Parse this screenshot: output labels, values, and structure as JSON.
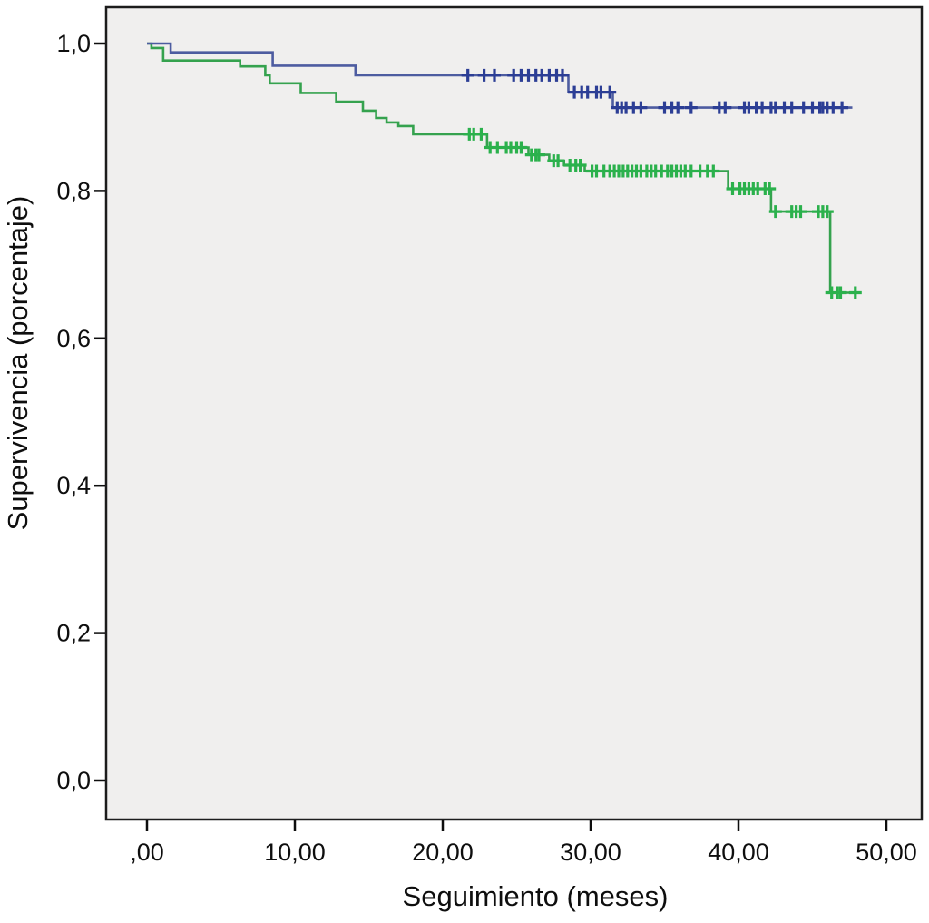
{
  "figure": {
    "background_color": "#ffffff",
    "panel_background": "#f0efee",
    "panel_border_color": "#1c1c1c",
    "tick_color": "#0e0e0e"
  },
  "chart_data": {
    "type": "line",
    "subtype": "kaplan-meier-survival-step",
    "title": "",
    "xlabel": "Seguimiento (meses)",
    "ylabel": "Supervivencia (porcentaje)",
    "xlim": [
      0,
      50
    ],
    "ylim": [
      0,
      1
    ],
    "grid": false,
    "legend": "none",
    "x_ticks": [
      {
        "value": 0,
        "label": ",00"
      },
      {
        "value": 10,
        "label": "10,00"
      },
      {
        "value": 20,
        "label": "20,00"
      },
      {
        "value": 30,
        "label": "30,00"
      },
      {
        "value": 40,
        "label": "40,00"
      },
      {
        "value": 50,
        "label": "50,00"
      }
    ],
    "y_ticks": [
      {
        "value": 0.0,
        "label": "0,0"
      },
      {
        "value": 0.2,
        "label": "0,2"
      },
      {
        "value": 0.4,
        "label": "0,4"
      },
      {
        "value": 0.6,
        "label": "0,6"
      },
      {
        "value": 0.8,
        "label": "0,8"
      },
      {
        "value": 1.0,
        "label": "1,0"
      }
    ],
    "series": [
      {
        "name": "grupo-verde",
        "line_color": "#35a24e",
        "censor_color": "#2bb14c",
        "steps": [
          [
            0,
            1.0
          ],
          [
            0.3,
            0.994
          ],
          [
            1.1,
            0.977
          ],
          [
            6.3,
            0.969
          ],
          [
            8.0,
            0.957
          ],
          [
            8.3,
            0.946
          ],
          [
            10.4,
            0.933
          ],
          [
            12.8,
            0.921
          ],
          [
            14.6,
            0.909
          ],
          [
            15.5,
            0.899
          ],
          [
            16.2,
            0.893
          ],
          [
            17.0,
            0.888
          ],
          [
            18.0,
            0.877
          ],
          [
            23.0,
            0.859
          ],
          [
            25.8,
            0.849
          ],
          [
            27.2,
            0.841
          ],
          [
            28.2,
            0.835
          ],
          [
            29.6,
            0.827
          ],
          [
            39.3,
            0.803
          ],
          [
            42.2,
            0.772
          ],
          [
            46.2,
            0.662
          ]
        ],
        "end_time": 48.3,
        "censored": [
          [
            21.8,
            0.877
          ],
          [
            22.1,
            0.877
          ],
          [
            22.6,
            0.877
          ],
          [
            23.2,
            0.859
          ],
          [
            23.7,
            0.859
          ],
          [
            24.3,
            0.859
          ],
          [
            24.6,
            0.859
          ],
          [
            25.0,
            0.859
          ],
          [
            25.3,
            0.859
          ],
          [
            26.0,
            0.849
          ],
          [
            26.3,
            0.849
          ],
          [
            26.5,
            0.849
          ],
          [
            27.5,
            0.841
          ],
          [
            27.8,
            0.841
          ],
          [
            28.6,
            0.835
          ],
          [
            29.0,
            0.835
          ],
          [
            29.3,
            0.835
          ],
          [
            30.1,
            0.827
          ],
          [
            30.4,
            0.827
          ],
          [
            30.9,
            0.827
          ],
          [
            31.3,
            0.827
          ],
          [
            31.6,
            0.827
          ],
          [
            31.9,
            0.827
          ],
          [
            32.2,
            0.827
          ],
          [
            32.5,
            0.827
          ],
          [
            32.8,
            0.827
          ],
          [
            33.1,
            0.827
          ],
          [
            33.4,
            0.827
          ],
          [
            33.8,
            0.827
          ],
          [
            34.1,
            0.827
          ],
          [
            34.4,
            0.827
          ],
          [
            34.8,
            0.827
          ],
          [
            35.2,
            0.827
          ],
          [
            35.5,
            0.827
          ],
          [
            35.8,
            0.827
          ],
          [
            36.1,
            0.827
          ],
          [
            36.4,
            0.827
          ],
          [
            36.8,
            0.827
          ],
          [
            37.4,
            0.827
          ],
          [
            37.9,
            0.827
          ],
          [
            38.3,
            0.827
          ],
          [
            39.6,
            0.803
          ],
          [
            40.1,
            0.803
          ],
          [
            40.4,
            0.803
          ],
          [
            40.7,
            0.803
          ],
          [
            41.0,
            0.803
          ],
          [
            41.3,
            0.803
          ],
          [
            41.8,
            0.803
          ],
          [
            42.1,
            0.803
          ],
          [
            42.5,
            0.772
          ],
          [
            43.6,
            0.772
          ],
          [
            43.9,
            0.772
          ],
          [
            44.2,
            0.772
          ],
          [
            45.4,
            0.772
          ],
          [
            45.7,
            0.772
          ],
          [
            46.0,
            0.772
          ],
          [
            46.3,
            0.662
          ],
          [
            46.7,
            0.662
          ],
          [
            46.9,
            0.662
          ],
          [
            47.9,
            0.662
          ]
        ]
      },
      {
        "name": "grupo-azul",
        "line_color": "#4d5ca0",
        "censor_color": "#2c3e95",
        "steps": [
          [
            0,
            1.0
          ],
          [
            1.6,
            0.988
          ],
          [
            8.5,
            0.97
          ],
          [
            14.1,
            0.957
          ],
          [
            28.5,
            0.934
          ],
          [
            31.5,
            0.913
          ]
        ],
        "end_time": 47.7,
        "censored": [
          [
            21.7,
            0.957
          ],
          [
            22.8,
            0.957
          ],
          [
            23.5,
            0.957
          ],
          [
            24.8,
            0.957
          ],
          [
            25.3,
            0.957
          ],
          [
            25.8,
            0.957
          ],
          [
            26.3,
            0.957
          ],
          [
            26.7,
            0.957
          ],
          [
            27.2,
            0.957
          ],
          [
            27.7,
            0.957
          ],
          [
            28.1,
            0.957
          ],
          [
            28.9,
            0.934
          ],
          [
            29.4,
            0.934
          ],
          [
            29.8,
            0.934
          ],
          [
            30.4,
            0.934
          ],
          [
            30.7,
            0.934
          ],
          [
            31.3,
            0.934
          ],
          [
            31.8,
            0.913
          ],
          [
            32.1,
            0.913
          ],
          [
            32.4,
            0.913
          ],
          [
            32.9,
            0.913
          ],
          [
            33.4,
            0.913
          ],
          [
            35.0,
            0.913
          ],
          [
            35.5,
            0.913
          ],
          [
            35.9,
            0.913
          ],
          [
            36.8,
            0.913
          ],
          [
            38.7,
            0.913
          ],
          [
            39.1,
            0.913
          ],
          [
            40.4,
            0.913
          ],
          [
            40.7,
            0.913
          ],
          [
            41.2,
            0.913
          ],
          [
            41.6,
            0.913
          ],
          [
            42.2,
            0.913
          ],
          [
            42.5,
            0.913
          ],
          [
            43.1,
            0.913
          ],
          [
            43.6,
            0.913
          ],
          [
            44.4,
            0.913
          ],
          [
            45.0,
            0.913
          ],
          [
            45.5,
            0.913
          ],
          [
            45.7,
            0.913
          ],
          [
            46.0,
            0.913
          ],
          [
            46.4,
            0.913
          ],
          [
            47.0,
            0.913
          ]
        ]
      }
    ]
  }
}
